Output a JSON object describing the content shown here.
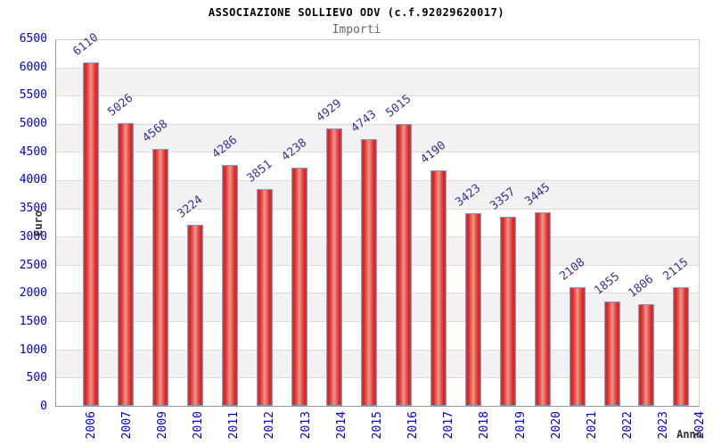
{
  "header": {
    "title": "ASSOCIAZIONE SOLLIEVO ODV (c.f.92029620017)",
    "subtitle": "Importi"
  },
  "chart_data": {
    "type": "bar",
    "title": "ASSOCIAZIONE SOLLIEVO ODV (c.f.92029620017)",
    "subtitle": "Importi",
    "xlabel": "Anno",
    "ylabel": "Euro",
    "categories": [
      "2006",
      "2007",
      "2009",
      "2010",
      "2011",
      "2012",
      "2013",
      "2014",
      "2015",
      "2016",
      "2017",
      "2018",
      "2019",
      "2020",
      "2021",
      "2022",
      "2023",
      "2024"
    ],
    "values": [
      6110,
      5026,
      4568,
      3224,
      4286,
      3851,
      4238,
      4929,
      4743,
      5015,
      4190,
      3423,
      3357,
      3445,
      2108,
      1855,
      1806,
      2115
    ],
    "ylim": [
      0,
      6500
    ],
    "ytick_step": 500,
    "grid": "horizontal gridlines with alternating gray bands",
    "legend": "none",
    "colors": {
      "bar_fill": "#d61f1d",
      "bar_highlight": "#e99c96",
      "bar_border": "#69a0d6",
      "tick_label": "#0000cc",
      "value_label": "#333399",
      "band_gray": "#f2f2f2",
      "gridline": "#dcdcdc",
      "subtitle_text": "#666666",
      "axis_title_text": "#333333"
    }
  }
}
